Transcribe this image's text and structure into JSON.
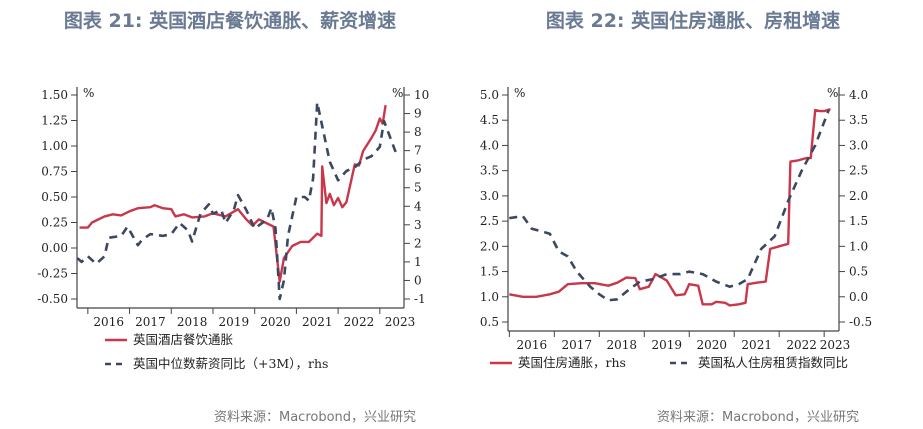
{
  "colors": {
    "red": "#c8374a",
    "navy": "#3b4860",
    "title": "#6a7a93"
  },
  "chart_data": [
    {
      "type": "line",
      "title": "图表 21: 英国酒店餐饮通胀、薪资增速",
      "x_ticks": [
        "2016",
        "2017",
        "2018",
        "2019",
        "2020",
        "2021",
        "2022",
        "2023"
      ],
      "xlim": [
        2015.74,
        2023.58
      ],
      "ylim_left": [
        -0.5,
        1.5
      ],
      "yticks_left": [
        "1.50",
        "1.25",
        "1.00",
        "0.75",
        "0.50",
        "0.25",
        "0.00",
        "-0.25",
        "-0.50"
      ],
      "ylim_right": [
        -1,
        10
      ],
      "yticks_right": [
        "10",
        "9",
        "8",
        "7",
        "6",
        "5",
        "4",
        "3",
        "2",
        "1",
        "0",
        "-1"
      ],
      "unit_left": "%",
      "unit_right": "%",
      "grid": false,
      "legend": "bottom",
      "series": [
        {
          "name": "英国酒店餐饮通胀",
          "axis": "left",
          "style": "solid",
          "color": "#c8374a",
          "x": [
            2015.8,
            2016.0,
            2016.1,
            2016.4,
            2016.6,
            2016.8,
            2017.0,
            2017.2,
            2017.5,
            2017.6,
            2017.8,
            2018.0,
            2018.1,
            2018.3,
            2018.5,
            2018.8,
            2019.0,
            2019.3,
            2019.6,
            2019.8,
            2019.95,
            2020.1,
            2020.3,
            2020.45,
            2020.6,
            2020.7,
            2020.9,
            2021.1,
            2021.3,
            2021.5,
            2021.6,
            2021.62,
            2021.72,
            2021.8,
            2021.9,
            2022.0,
            2022.1,
            2022.2,
            2022.4,
            2022.5,
            2022.6,
            2022.8,
            2022.9,
            2023.0,
            2023.07,
            2023.14
          ],
          "y": [
            0.2,
            0.2,
            0.25,
            0.31,
            0.33,
            0.32,
            0.36,
            0.39,
            0.4,
            0.42,
            0.39,
            0.38,
            0.31,
            0.33,
            0.3,
            0.31,
            0.34,
            0.31,
            0.38,
            0.28,
            0.22,
            0.28,
            0.24,
            0.21,
            -0.33,
            -0.1,
            0.02,
            0.06,
            0.06,
            0.14,
            0.12,
            0.8,
            0.44,
            0.53,
            0.42,
            0.49,
            0.4,
            0.45,
            0.82,
            0.81,
            0.95,
            1.08,
            1.15,
            1.27,
            1.22,
            1.4
          ]
        },
        {
          "name": "英国中位数薪资同比（+3M），rhs",
          "axis": "right",
          "style": "dashed",
          "color": "#3b4860",
          "x": [
            2015.75,
            2015.85,
            2016.0,
            2016.2,
            2016.4,
            2016.5,
            2016.8,
            2016.95,
            2017.2,
            2017.3,
            2017.5,
            2017.8,
            2018.0,
            2018.2,
            2018.4,
            2018.5,
            2018.7,
            2018.9,
            2019.0,
            2019.2,
            2019.3,
            2019.5,
            2019.6,
            2019.8,
            2020.0,
            2020.3,
            2020.4,
            2020.5,
            2020.6,
            2020.7,
            2020.8,
            2021.0,
            2021.2,
            2021.3,
            2021.4,
            2021.5,
            2021.8,
            2022.0,
            2022.2,
            2022.4,
            2022.6,
            2022.8,
            2023.0,
            2023.1,
            2023.4
          ],
          "y": [
            1.2,
            1.0,
            1.3,
            0.9,
            1.3,
            2.3,
            2.4,
            2.9,
            1.9,
            2.2,
            2.5,
            2.4,
            2.5,
            3.1,
            2.7,
            2.1,
            3.6,
            4.1,
            3.6,
            3.8,
            3.1,
            3.8,
            4.6,
            3.8,
            2.8,
            3.3,
            3.9,
            2.8,
            -1.0,
            0.0,
            2.4,
            4.5,
            4.5,
            4.3,
            5.5,
            9.6,
            6.4,
            5.4,
            5.9,
            6.1,
            6.5,
            6.7,
            7.2,
            8.6,
            6.8
          ]
        }
      ]
    },
    {
      "type": "line",
      "title": "图表 22: 英国住房通胀、房租增速",
      "x_ticks": [
        "2016",
        "2017",
        "2018",
        "2019",
        "2020",
        "2021",
        "2022",
        "2023"
      ],
      "xlim": [
        2015.97,
        2023.33
      ],
      "ylim_left": [
        0.5,
        5.0
      ],
      "yticks_left": [
        "5.0",
        "4.5",
        "4.0",
        "3.5",
        "3.0",
        "2.5",
        "2.0",
        "1.5",
        "1.0",
        "0.5"
      ],
      "ylim_right": [
        -0.5,
        4.0
      ],
      "yticks_right": [
        "4.0",
        "3.5",
        "3.0",
        "2.5",
        "2.0",
        "1.5",
        "1.0",
        "0.5",
        "0.0",
        "-0.5"
      ],
      "unit_left": "%",
      "unit_right": "%",
      "grid": false,
      "legend": "bottom",
      "series": [
        {
          "name": "英国住房通胀，rhs",
          "axis": "right",
          "style": "solid",
          "color": "#c8374a",
          "x": [
            2016.0,
            2016.3,
            2016.6,
            2016.9,
            2017.1,
            2017.3,
            2017.6,
            2017.9,
            2018.2,
            2018.4,
            2018.6,
            2018.8,
            2018.9,
            2019.1,
            2019.25,
            2019.5,
            2019.7,
            2019.9,
            2020.0,
            2020.2,
            2020.3,
            2020.5,
            2020.6,
            2020.8,
            2020.9,
            2021.1,
            2021.25,
            2021.3,
            2021.5,
            2021.7,
            2021.8,
            2022.0,
            2022.2,
            2022.25,
            2022.4,
            2022.6,
            2022.7,
            2022.8,
            2022.9,
            2023.0,
            2023.14
          ],
          "y": [
            0.05,
            0.0,
            0.0,
            0.05,
            0.1,
            0.25,
            0.27,
            0.27,
            0.22,
            0.28,
            0.38,
            0.37,
            0.15,
            0.2,
            0.45,
            0.32,
            0.03,
            0.05,
            0.25,
            0.22,
            -0.15,
            -0.15,
            -0.1,
            -0.12,
            -0.17,
            -0.15,
            -0.12,
            0.25,
            0.28,
            0.3,
            0.95,
            1.0,
            1.05,
            2.68,
            2.7,
            2.75,
            2.75,
            3.7,
            3.68,
            3.68,
            3.72
          ]
        },
        {
          "name": "英国私人住房租赁指数同比",
          "axis": "left",
          "style": "dashed",
          "color": "#3b4860",
          "x": [
            2016.0,
            2016.3,
            2016.5,
            2016.7,
            2016.9,
            2017.1,
            2017.3,
            2017.5,
            2017.8,
            2018.0,
            2018.2,
            2018.4,
            2018.6,
            2018.9,
            2019.2,
            2019.5,
            2019.8,
            2020.0,
            2020.3,
            2020.6,
            2020.9,
            2021.1,
            2021.3,
            2021.6,
            2021.9,
            2022.2,
            2022.5,
            2022.8,
            2023.1
          ],
          "y": [
            2.56,
            2.6,
            2.35,
            2.3,
            2.25,
            1.9,
            1.8,
            1.5,
            1.2,
            1.05,
            0.93,
            0.95,
            1.1,
            1.3,
            1.35,
            1.45,
            1.45,
            1.5,
            1.45,
            1.3,
            1.2,
            1.25,
            1.35,
            1.95,
            2.2,
            2.9,
            3.5,
            4.0,
            4.7
          ]
        }
      ]
    }
  ],
  "source": "资料来源：Macrobond，兴业研究"
}
